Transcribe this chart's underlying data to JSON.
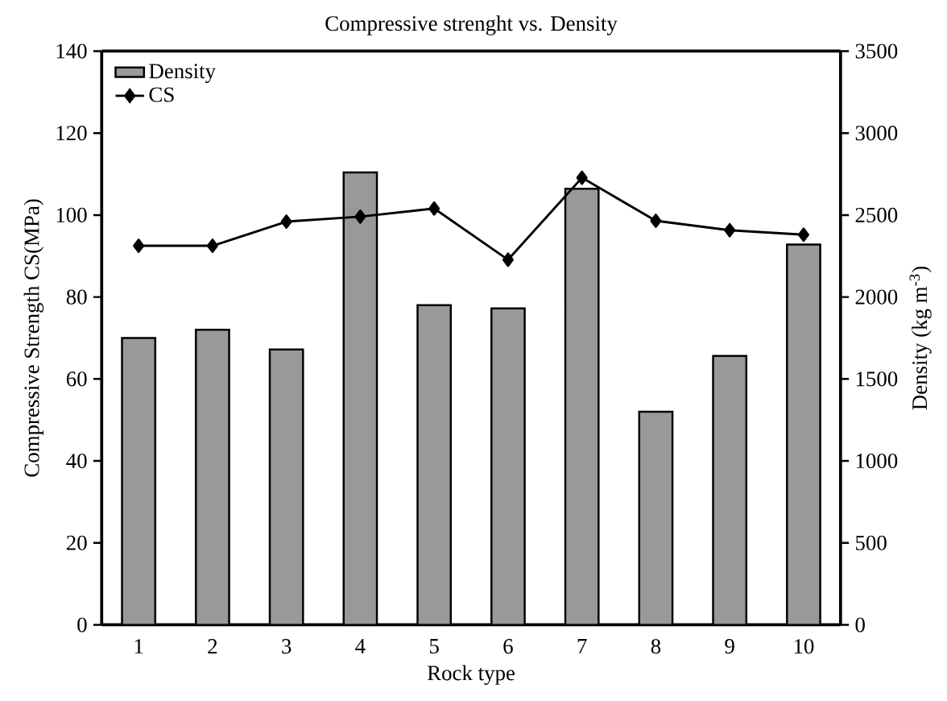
{
  "chart_data": {
    "type": "bar",
    "title": "Compressive strenght vs. Density",
    "xlabel": "Rock type",
    "ylabel": "Compressive Strength CS(MPa)",
    "y2label": "Density (kg m$^{-3}$)",
    "categories": [
      "1",
      "2",
      "3",
      "4",
      "5",
      "6",
      "7",
      "8",
      "9",
      "10"
    ],
    "series": [
      {
        "name": "Density",
        "axis": "y2",
        "color": "#999999",
        "values": [
          1750,
          1800,
          1680,
          2760,
          1950,
          1930,
          2660,
          1300,
          1640,
          2320
        ]
      },
      {
        "name": "CS",
        "type": "line",
        "axis": "y",
        "color": "#000000",
        "marker": "diamond",
        "line_style": "solid",
        "values": [
          92.5,
          92.5,
          98.4,
          99.6,
          101.6,
          89.1,
          109.1,
          98.6,
          96.3,
          95.2
        ]
      }
    ],
    "ylim": [
      0,
      140
    ],
    "yticks": [
      0,
      20,
      40,
      60,
      80,
      100,
      120,
      140
    ],
    "y2lim": [
      0,
      3500
    ],
    "y2ticks": [
      0,
      500,
      1000,
      1500,
      2000,
      2500,
      3000,
      3500
    ],
    "legend": "top left",
    "grid": false
  }
}
